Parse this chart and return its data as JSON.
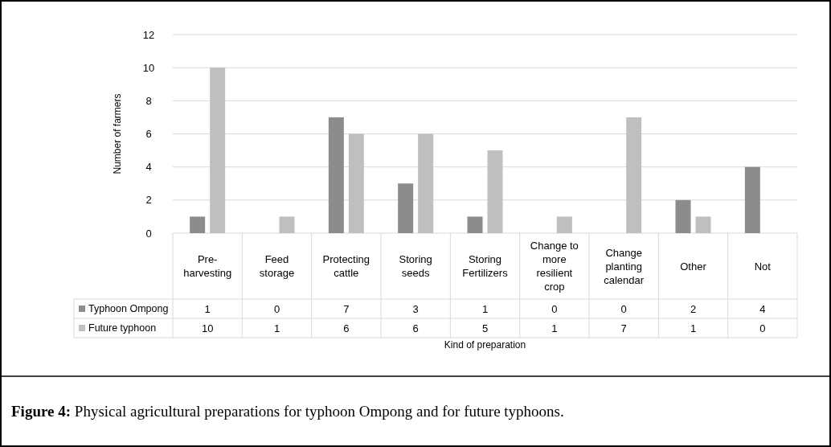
{
  "chart_data": {
    "type": "bar",
    "xlabel": "Kind of preparation",
    "ylabel": "Number of farmers",
    "categories": [
      "Pre-harvesting",
      "Feed storage",
      "Protecting cattle",
      "Storing seeds",
      "Storing Fertilizers",
      "Change to more resilient crop",
      "Change planting calendar",
      "Other",
      "Not"
    ],
    "series": [
      {
        "name": "Typhoon Ompong",
        "color": "#8c8c8c",
        "values": [
          1,
          0,
          7,
          3,
          1,
          0,
          0,
          2,
          4
        ]
      },
      {
        "name": "Future typhoon",
        "color": "#bfbfbf",
        "values": [
          10,
          1,
          6,
          6,
          5,
          1,
          7,
          1,
          0
        ]
      }
    ],
    "ylim": [
      0,
      12
    ],
    "yticks": [
      0,
      2,
      4,
      6,
      8,
      10,
      12
    ],
    "grid": "y",
    "legend": "bottom",
    "data_labels": true,
    "annotations": [
      "Figure 4: Physical agricultural preparations for typhoon Ompong and for future typhoons."
    ]
  }
}
